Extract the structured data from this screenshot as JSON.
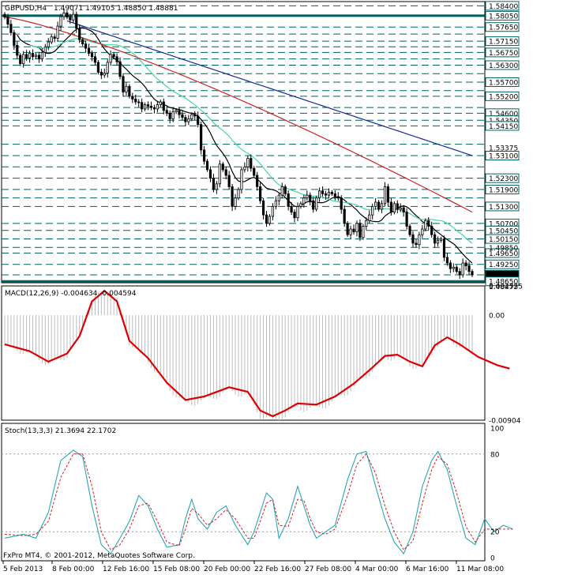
{
  "window": {
    "symbol_title": "GBPUSD,H4",
    "ohlc_text": "1.49071 1.49105 1.48850 1.48881"
  },
  "footer": {
    "copyright": "FxPro MT4, © 2001-2012, MetaQuotes Software Corp."
  },
  "colors": {
    "background": "#ffffff",
    "candle": "#000000",
    "sr_line": "#006060",
    "ma_fast": "#000000",
    "ma_mid": "#44d8a0",
    "ma_slow": "#cc2222",
    "ma_long": "#1a2a9a",
    "macd_hist": "#bcbcbc",
    "macd_signal": "#dd0000",
    "stoch_main": "#2aa6b5",
    "stoch_signal": "#cc2222"
  },
  "chart_data": [
    {
      "type": "candlestick",
      "panel": "price",
      "title": "GBPUSD,H4",
      "ylim": [
        1.486,
        1.5855
      ],
      "x_ticks": [
        "5 Feb 2013",
        "8 Feb 00:00",
        "12 Feb 16:00",
        "15 Feb 08:00",
        "20 Feb 00:00",
        "22 Feb 16:00",
        "27 Feb 08:00",
        "4 Mar 00:00",
        "6 Mar 16:00",
        "11 Mar 08:00"
      ],
      "price_labels_boxed": [
        "1.58400",
        "1.58050",
        "1.57650",
        "1.57150",
        "1.56750",
        "1.56300",
        "1.55700",
        "1.55200",
        "1.54600",
        "1.54350",
        "1.54150",
        "1.53100",
        "1.52300",
        "1.51900",
        "1.51300",
        "1.50700",
        "1.50450",
        "1.50150",
        "1.49650",
        "1.49250",
        "1.48881",
        "1.48650"
      ],
      "price_labels_plain": [
        "1.53375",
        "1.49850",
        "1.48475"
      ],
      "support_resistance_levels": [
        1.584,
        1.5805,
        1.5765,
        1.574,
        1.5715,
        1.5695,
        1.5675,
        1.5652,
        1.563,
        1.56,
        1.557,
        1.554,
        1.552,
        1.548,
        1.546,
        1.5435,
        1.5415,
        1.535,
        1.531,
        1.527,
        1.523,
        1.519,
        1.516,
        1.513,
        1.507,
        1.5045,
        1.5015,
        1.4985,
        1.4965,
        1.4925,
        1.4888,
        1.4865
      ],
      "thick_levels": [
        1.5805,
        1.4865
      ],
      "closes": [
        1.58,
        1.5775,
        1.5745,
        1.57,
        1.5665,
        1.5635,
        1.5668,
        1.5655,
        1.5672,
        1.566,
        1.5665,
        1.5652,
        1.5675,
        1.5695,
        1.5712,
        1.573,
        1.5725,
        1.5768,
        1.5802,
        1.5815,
        1.58,
        1.579,
        1.581,
        1.576,
        1.572,
        1.5705,
        1.569,
        1.5672,
        1.566,
        1.564,
        1.5605,
        1.5595,
        1.5602,
        1.564,
        1.5668,
        1.566,
        1.5642,
        1.559,
        1.5535,
        1.5555,
        1.552,
        1.551,
        1.55,
        1.5498,
        1.5475,
        1.549,
        1.5485,
        1.548,
        1.5475,
        1.549,
        1.55,
        1.547,
        1.546,
        1.544,
        1.5465,
        1.547,
        1.5455,
        1.5445,
        1.543,
        1.544,
        1.5455,
        1.545,
        1.542,
        1.533,
        1.529,
        1.526,
        1.523,
        1.519,
        1.521,
        1.528,
        1.526,
        1.524,
        1.52,
        1.513,
        1.516,
        1.519,
        1.526,
        1.527,
        1.53,
        1.5265,
        1.524,
        1.52,
        1.515,
        1.51,
        1.507,
        1.5095,
        1.513,
        1.515,
        1.517,
        1.52,
        1.5175,
        1.513,
        1.511,
        1.509,
        1.513,
        1.514,
        1.516,
        1.517,
        1.515,
        1.512,
        1.516,
        1.5185,
        1.5175,
        1.517,
        1.518,
        1.5175,
        1.5165,
        1.516,
        1.512,
        1.507,
        1.503,
        1.505,
        1.504,
        1.507,
        1.502,
        1.506,
        1.508,
        1.51,
        1.513,
        1.5145,
        1.512,
        1.514,
        1.52,
        1.5145,
        1.511,
        1.514,
        1.512,
        1.5125,
        1.511,
        1.506,
        1.503,
        1.5,
        1.4995,
        1.503,
        1.505,
        1.508,
        1.506,
        1.503,
        1.5,
        1.501,
        1.5015,
        1.495,
        1.493,
        1.491,
        1.4915,
        1.49,
        1.4888,
        1.493,
        1.492,
        1.49,
        1.4888
      ]
    },
    {
      "type": "line",
      "panel": "macd",
      "title": "MACD(12,26,9) -0.004634 -0.004594",
      "y_ticks": [
        "0.002525",
        "0.00",
        "-0.00904"
      ],
      "ylim": [
        -0.00904,
        0.002525
      ],
      "series": [
        {
          "name": "MACD(12,26,9)",
          "kind": "histogram",
          "values_from": "signal_shape_scaled"
        },
        {
          "kind": "line",
          "points": [
            [
              0,
              -0.0025
            ],
            [
              8,
              -0.0031
            ],
            [
              14,
              -0.004
            ],
            [
              20,
              -0.0033
            ],
            [
              24,
              -0.0018
            ],
            [
              28,
              0.0012
            ],
            [
              32,
              0.0021
            ],
            [
              36,
              0.0012
            ],
            [
              40,
              -0.0022
            ],
            [
              46,
              -0.0037
            ],
            [
              52,
              -0.0058
            ],
            [
              58,
              -0.0073
            ],
            [
              64,
              -0.007
            ],
            [
              72,
              -0.0062
            ],
            [
              78,
              -0.0066
            ],
            [
              82,
              -0.0082
            ],
            [
              86,
              -0.0087
            ],
            [
              90,
              -0.0082
            ],
            [
              94,
              -0.0076
            ],
            [
              100,
              -0.0077
            ],
            [
              106,
              -0.007
            ],
            [
              112,
              -0.0059
            ],
            [
              118,
              -0.0045
            ],
            [
              122,
              -0.0035
            ],
            [
              126,
              -0.0034
            ],
            [
              130,
              -0.004
            ],
            [
              134,
              -0.0044
            ],
            [
              138,
              -0.0026
            ],
            [
              142,
              -0.0019
            ],
            [
              146,
              -0.0025
            ],
            [
              152,
              -0.0036
            ],
            [
              158,
              -0.0043
            ],
            [
              162,
              -0.0046
            ]
          ]
        }
      ]
    },
    {
      "type": "line",
      "panel": "stochastic",
      "title": "Stoch(13,3,3) 21.3694 22.1702",
      "y_ticks": [
        "100",
        "80",
        "20",
        "0"
      ],
      "ylim": [
        0,
        100
      ],
      "series": [
        {
          "name": "Stoch(13,3,3)",
          "kind": "main",
          "points": [
            [
              0,
              15
            ],
            [
              6,
              18
            ],
            [
              10,
              15
            ],
            [
              14,
              35
            ],
            [
              18,
              75
            ],
            [
              22,
              83
            ],
            [
              25,
              78
            ],
            [
              28,
              40
            ],
            [
              31,
              10
            ],
            [
              34,
              3
            ],
            [
              37,
              15
            ],
            [
              40,
              28
            ],
            [
              43,
              48
            ],
            [
              46,
              40
            ],
            [
              49,
              22
            ],
            [
              52,
              8
            ],
            [
              56,
              10
            ],
            [
              58,
              30
            ],
            [
              60,
              45
            ],
            [
              62,
              30
            ],
            [
              65,
              22
            ],
            [
              68,
              35
            ],
            [
              71,
              40
            ],
            [
              74,
              25
            ],
            [
              78,
              10
            ],
            [
              80,
              20
            ],
            [
              82,
              35
            ],
            [
              84,
              50
            ],
            [
              86,
              45
            ],
            [
              88,
              15
            ],
            [
              91,
              30
            ],
            [
              94,
              55
            ],
            [
              96,
              40
            ],
            [
              98,
              25
            ],
            [
              100,
              15
            ],
            [
              103,
              20
            ],
            [
              106,
              25
            ],
            [
              110,
              60
            ],
            [
              113,
              80
            ],
            [
              116,
              82
            ],
            [
              119,
              55
            ],
            [
              122,
              30
            ],
            [
              125,
              12
            ],
            [
              128,
              3
            ],
            [
              131,
              20
            ],
            [
              134,
              55
            ],
            [
              137,
              75
            ],
            [
              139,
              82
            ],
            [
              142,
              68
            ],
            [
              145,
              40
            ],
            [
              148,
              15
            ],
            [
              151,
              10
            ],
            [
              154,
              30
            ],
            [
              157,
              20
            ],
            [
              160,
              25
            ],
            [
              163,
              22
            ]
          ]
        },
        {
          "kind": "signal",
          "points": [
            [
              0,
              18
            ],
            [
              6,
              17
            ],
            [
              10,
              18
            ],
            [
              14,
              28
            ],
            [
              18,
              62
            ],
            [
              22,
              80
            ],
            [
              25,
              80
            ],
            [
              28,
              55
            ],
            [
              31,
              20
            ],
            [
              34,
              6
            ],
            [
              37,
              10
            ],
            [
              40,
              22
            ],
            [
              43,
              40
            ],
            [
              46,
              42
            ],
            [
              49,
              28
            ],
            [
              52,
              12
            ],
            [
              56,
              9
            ],
            [
              58,
              22
            ],
            [
              60,
              38
            ],
            [
              62,
              34
            ],
            [
              65,
              25
            ],
            [
              68,
              30
            ],
            [
              71,
              37
            ],
            [
              74,
              30
            ],
            [
              78,
              15
            ],
            [
              80,
              15
            ],
            [
              82,
              28
            ],
            [
              84,
              42
            ],
            [
              86,
              45
            ],
            [
              88,
              25
            ],
            [
              91,
              24
            ],
            [
              94,
              45
            ],
            [
              96,
              44
            ],
            [
              98,
              30
            ],
            [
              100,
              20
            ],
            [
              103,
              18
            ],
            [
              106,
              22
            ],
            [
              110,
              48
            ],
            [
              113,
              72
            ],
            [
              116,
              80
            ],
            [
              119,
              65
            ],
            [
              122,
              40
            ],
            [
              125,
              20
            ],
            [
              128,
              6
            ],
            [
              131,
              13
            ],
            [
              134,
              42
            ],
            [
              137,
              68
            ],
            [
              139,
              78
            ],
            [
              142,
              72
            ],
            [
              145,
              50
            ],
            [
              148,
              24
            ],
            [
              151,
              12
            ],
            [
              154,
              22
            ],
            [
              157,
              22
            ],
            [
              160,
              22
            ],
            [
              163,
              22
            ]
          ]
        }
      ]
    }
  ]
}
